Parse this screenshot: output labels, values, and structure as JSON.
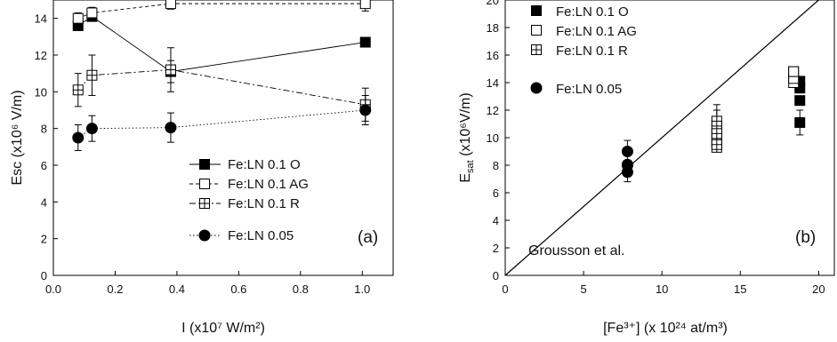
{
  "chart_data": [
    {
      "id": "a",
      "type": "line",
      "panel_label": "(a)",
      "xlabel": "I (x10⁷ W/m²)",
      "ylabel": "Esc (x10⁶ V/m)",
      "xlim": [
        0.0,
        1.1
      ],
      "ylim": [
        0,
        15
      ],
      "xticks": [
        "0.0",
        "0.2",
        "0.4",
        "0.6",
        "0.8",
        "1.0"
      ],
      "xtick_values": [
        0.0,
        0.2,
        0.4,
        0.6,
        0.8,
        1.0
      ],
      "yticks": [
        "0",
        "2",
        "4",
        "6",
        "8",
        "10",
        "12",
        "14"
      ],
      "ytick_values": [
        0,
        2,
        4,
        6,
        8,
        10,
        12,
        14
      ],
      "legend_position": "bottom-right",
      "series": [
        {
          "name": "Fe:LN 0.1 O",
          "marker": "filled-square",
          "line": "solid",
          "x": [
            0.08,
            0.125,
            0.38,
            1.01
          ],
          "y": [
            13.6,
            14.1,
            11.1,
            12.7
          ],
          "err": [
            0,
            0,
            0.6,
            0
          ]
        },
        {
          "name": "Fe:LN 0.1 AG",
          "marker": "open-square",
          "line": "dashed",
          "x": [
            0.08,
            0.125,
            0.38,
            1.01
          ],
          "y": [
            14.0,
            14.3,
            14.8,
            14.8
          ],
          "err": [
            0.3,
            0.3,
            0.3,
            0.4
          ]
        },
        {
          "name": "Fe:LN 0.1 R",
          "marker": "crossed-square",
          "line": "dash-dot",
          "x": [
            0.08,
            0.125,
            0.38,
            1.01
          ],
          "y": [
            10.1,
            10.9,
            11.2,
            9.3
          ],
          "err": [
            0.9,
            1.1,
            1.2,
            0.9
          ]
        },
        {
          "name": "Fe:LN 0.05",
          "marker": "filled-circle",
          "line": "dotted",
          "x": [
            0.08,
            0.125,
            0.38,
            1.01
          ],
          "y": [
            7.5,
            8.0,
            8.05,
            9.0
          ],
          "err": [
            0.7,
            0.7,
            0.8,
            0.8
          ]
        }
      ]
    },
    {
      "id": "b",
      "type": "scatter",
      "panel_label": "(b)",
      "xlabel": "[Fe³⁺] (x 10²⁴ at/m³)",
      "ylabel": "E_sat (x10⁶V/m)",
      "ylabel_main": "E",
      "ylabel_sub": "sat",
      "ylabel_rest": " (x10⁶V/m)",
      "xlim": [
        0,
        21
      ],
      "ylim": [
        0,
        20
      ],
      "xticks": [
        "0",
        "5",
        "10",
        "15",
        "20"
      ],
      "xtick_values": [
        0,
        5,
        10,
        15,
        20
      ],
      "yticks": [
        "0",
        "2",
        "4",
        "6",
        "8",
        "10",
        "12",
        "14",
        "16",
        "18",
        "20"
      ],
      "ytick_values": [
        0,
        2,
        4,
        6,
        8,
        10,
        12,
        14,
        16,
        18,
        20
      ],
      "legend_position": "top-left",
      "reference_line": {
        "label": "Grousson et al.",
        "x": [
          0,
          20
        ],
        "y": [
          0,
          20
        ]
      },
      "series": [
        {
          "name": "Fe:LN 0.1 O",
          "marker": "filled-square",
          "x": [
            18.8,
            18.8,
            18.8,
            18.8
          ],
          "y": [
            11.1,
            12.7,
            13.6,
            14.1
          ],
          "err": [
            0.9,
            0,
            0,
            0
          ]
        },
        {
          "name": "Fe:LN 0.1 AG",
          "marker": "open-square",
          "x": [
            18.4,
            18.4,
            18.4,
            18.4
          ],
          "y": [
            14.0,
            14.3,
            14.8,
            14.8
          ],
          "err": [
            0,
            0,
            0,
            0
          ]
        },
        {
          "name": "Fe:LN 0.1 R",
          "marker": "crossed-square",
          "x": [
            13.5,
            13.5,
            13.5,
            13.5,
            13.5,
            13.5,
            13.5,
            13.5
          ],
          "y": [
            9.3,
            9.7,
            10.1,
            10.5,
            10.9,
            11.2,
            9.5,
            10.3
          ],
          "err": [
            0,
            0,
            0,
            0,
            1.1,
            1.2,
            0,
            0
          ]
        },
        {
          "name": "Fe:LN 0.05",
          "marker": "filled-circle",
          "x": [
            7.8,
            7.8,
            7.8,
            7.8
          ],
          "y": [
            7.5,
            8.0,
            8.05,
            9.0
          ],
          "err": [
            0.7,
            0,
            0,
            0.8
          ]
        }
      ]
    }
  ]
}
